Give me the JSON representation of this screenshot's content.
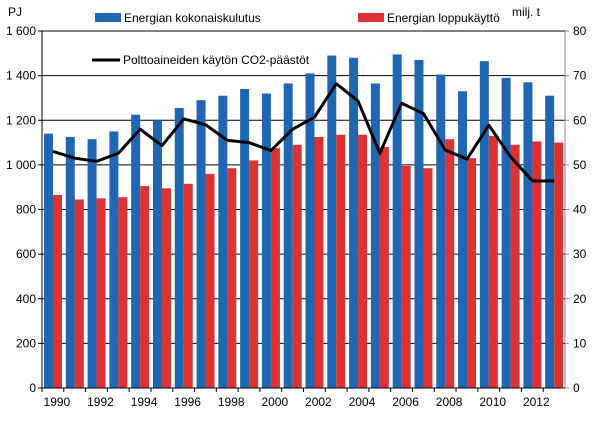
{
  "chart_data": {
    "type": "bar+line",
    "categories": [
      "1990",
      "1991",
      "1992",
      "1993",
      "1994",
      "1995",
      "1996",
      "1997",
      "1998",
      "1999",
      "2000",
      "2001",
      "2002",
      "2003",
      "2004",
      "2005",
      "2006",
      "2007",
      "2008",
      "2009",
      "2010",
      "2011",
      "2012",
      "2013"
    ],
    "x_tick_labels": [
      "1990",
      "1992",
      "1994",
      "1996",
      "1998",
      "2000",
      "2002",
      "2004",
      "2006",
      "2008",
      "2010",
      "2012"
    ],
    "left_axis": {
      "label": "PJ",
      "ylim": [
        0,
        1600
      ],
      "ticks": [
        "0",
        "200",
        "400",
        "600",
        "800",
        "1 000",
        "1 200",
        "1 400",
        "1 600"
      ]
    },
    "right_axis": {
      "label": "milj. t",
      "ylim": [
        0,
        80
      ],
      "ticks": [
        "0",
        "10",
        "20",
        "30",
        "40",
        "50",
        "60",
        "70",
        "80"
      ]
    },
    "grid": true,
    "legend_placement": "top",
    "series": [
      {
        "name": "Energian kokonaiskulutus",
        "type": "bar",
        "axis": "left",
        "color": "#1f66b3",
        "values": [
          1140,
          1125,
          1115,
          1150,
          1225,
          1200,
          1255,
          1290,
          1310,
          1340,
          1320,
          1365,
          1410,
          1490,
          1480,
          1365,
          1495,
          1470,
          1405,
          1330,
          1465,
          1390,
          1370,
          1310
        ]
      },
      {
        "name": "Energian loppukäyttö",
        "type": "bar",
        "axis": "left",
        "color": "#dc3234",
        "values": [
          865,
          845,
          850,
          855,
          905,
          895,
          915,
          960,
          985,
          1020,
          1075,
          1090,
          1125,
          1135,
          1135,
          1080,
          995,
          985,
          1115,
          1030,
          1130,
          1090,
          1105,
          1100
        ]
      },
      {
        "name": "Polttoaineiden käytön CO2-päästöt",
        "type": "line",
        "axis": "right",
        "color": "#000000",
        "values": [
          53,
          51.5,
          50.8,
          52.6,
          58,
          54.3,
          60.3,
          59,
          55.5,
          55,
          53.2,
          58,
          60.7,
          68.2,
          64.3,
          52.6,
          63.8,
          61.5,
          53.3,
          51.3,
          58.9,
          51.8,
          46.4,
          46.4
        ]
      }
    ]
  }
}
